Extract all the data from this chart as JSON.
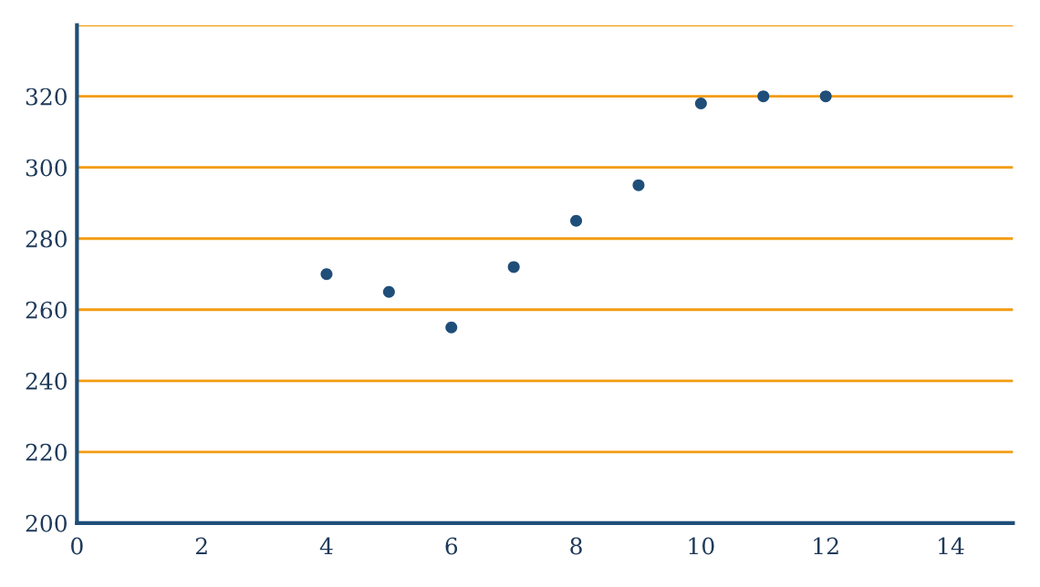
{
  "chart_data": {
    "type": "scatter",
    "x": [
      4,
      5,
      6,
      7,
      8,
      9,
      10,
      11,
      12
    ],
    "series": [
      {
        "color": "#1f4e79",
        "values": [
          270,
          265,
          255,
          272,
          285,
          295,
          318,
          320,
          320
        ]
      }
    ],
    "xlim": [
      0,
      15
    ],
    "xticks": [
      0,
      2,
      4,
      6,
      8,
      10,
      12,
      14
    ],
    "ylim": [
      200,
      340
    ],
    "yticks": [
      200,
      220,
      240,
      260,
      280,
      300,
      320,
      {
        "value": 340,
        "label": null
      }
    ],
    "grid": "y",
    "marker": "circle"
  }
}
